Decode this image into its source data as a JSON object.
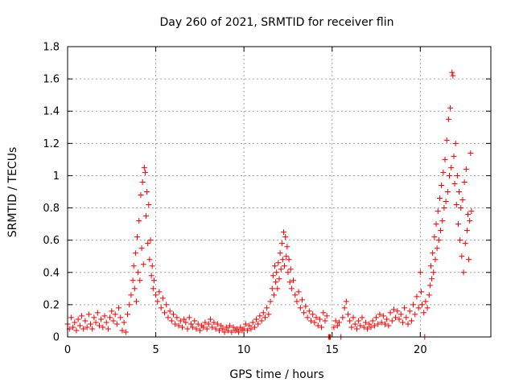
{
  "chart_data": {
    "type": "scatter",
    "title": "Day 260 of 2021, SRMTID for receiver flin",
    "xlabel": "GPS time / hours",
    "ylabel": "SRMTID / TECUs",
    "xlim": [
      0,
      24
    ],
    "ylim": [
      0,
      1.8
    ],
    "x_ticks": [
      0,
      5,
      10,
      15,
      20
    ],
    "y_ticks": [
      0,
      0.2,
      0.4,
      0.6,
      0.8,
      1,
      1.2,
      1.4,
      1.6,
      1.8
    ],
    "x_tick_labels": [
      "0",
      "5",
      "10",
      "15",
      "20"
    ],
    "y_tick_labels": [
      "0",
      "0.2",
      "0.4",
      "0.6",
      "0.8",
      "1",
      "1.2",
      "1.4",
      "1.6",
      "1.8"
    ],
    "grid": true,
    "marker": "+",
    "color": "#ee0000",
    "series": [
      {
        "name": "SRMTID",
        "points": [
          [
            0.0,
            0.08
          ],
          [
            0.1,
            0.05
          ],
          [
            0.2,
            0.12
          ],
          [
            0.3,
            0.06
          ],
          [
            0.4,
            0.09
          ],
          [
            0.5,
            0.04
          ],
          [
            0.6,
            0.11
          ],
          [
            0.7,
            0.07
          ],
          [
            0.8,
            0.13
          ],
          [
            0.9,
            0.05
          ],
          [
            1.0,
            0.1
          ],
          [
            1.1,
            0.06
          ],
          [
            1.2,
            0.14
          ],
          [
            1.3,
            0.08
          ],
          [
            1.4,
            0.05
          ],
          [
            1.5,
            0.12
          ],
          [
            1.6,
            0.09
          ],
          [
            1.7,
            0.15
          ],
          [
            1.8,
            0.07
          ],
          [
            1.9,
            0.11
          ],
          [
            2.0,
            0.06
          ],
          [
            2.1,
            0.13
          ],
          [
            2.2,
            0.09
          ],
          [
            2.3,
            0.05
          ],
          [
            2.4,
            0.12
          ],
          [
            2.5,
            0.16
          ],
          [
            2.6,
            0.1
          ],
          [
            2.7,
            0.14
          ],
          [
            2.8,
            0.08
          ],
          [
            2.9,
            0.18
          ],
          [
            3.0,
            0.12
          ],
          [
            3.1,
            0.04
          ],
          [
            3.2,
            0.09
          ],
          [
            3.3,
            0.03
          ],
          [
            3.4,
            0.14
          ],
          [
            3.5,
            0.2
          ],
          [
            3.6,
            0.26
          ],
          [
            3.7,
            0.35
          ],
          [
            3.75,
            0.44
          ],
          [
            3.8,
            0.3
          ],
          [
            3.85,
            0.52
          ],
          [
            3.9,
            0.22
          ],
          [
            3.95,
            0.62
          ],
          [
            4.0,
            0.4
          ],
          [
            4.05,
            0.72
          ],
          [
            4.1,
            0.35
          ],
          [
            4.15,
            0.88
          ],
          [
            4.2,
            0.55
          ],
          [
            4.25,
            0.96
          ],
          [
            4.3,
            0.45
          ],
          [
            4.35,
            1.05
          ],
          [
            4.4,
            1.02
          ],
          [
            4.45,
            0.75
          ],
          [
            4.5,
            0.9
          ],
          [
            4.55,
            0.58
          ],
          [
            4.6,
            0.82
          ],
          [
            4.65,
            0.48
          ],
          [
            4.7,
            0.6
          ],
          [
            4.75,
            0.38
          ],
          [
            4.8,
            0.44
          ],
          [
            4.85,
            0.3
          ],
          [
            4.9,
            0.35
          ],
          [
            5.0,
            0.26
          ],
          [
            5.1,
            0.22
          ],
          [
            5.2,
            0.28
          ],
          [
            5.3,
            0.18
          ],
          [
            5.4,
            0.24
          ],
          [
            5.5,
            0.15
          ],
          [
            5.6,
            0.2
          ],
          [
            5.7,
            0.12
          ],
          [
            5.8,
            0.16
          ],
          [
            5.9,
            0.1
          ],
          [
            6.0,
            0.14
          ],
          [
            6.1,
            0.08
          ],
          [
            6.2,
            0.12
          ],
          [
            6.3,
            0.07
          ],
          [
            6.4,
            0.1
          ],
          [
            6.5,
            0.06
          ],
          [
            6.6,
            0.11
          ],
          [
            6.7,
            0.09
          ],
          [
            6.8,
            0.05
          ],
          [
            6.9,
            0.12
          ],
          [
            7.0,
            0.08
          ],
          [
            7.1,
            0.06
          ],
          [
            7.2,
            0.1
          ],
          [
            7.3,
            0.05
          ],
          [
            7.4,
            0.08
          ],
          [
            7.5,
            0.04
          ],
          [
            7.6,
            0.07
          ],
          [
            7.7,
            0.06
          ],
          [
            7.8,
            0.09
          ],
          [
            7.9,
            0.05
          ],
          [
            8.0,
            0.08
          ],
          [
            8.1,
            0.11
          ],
          [
            8.2,
            0.06
          ],
          [
            8.3,
            0.09
          ],
          [
            8.4,
            0.05
          ],
          [
            8.5,
            0.08
          ],
          [
            8.6,
            0.04
          ],
          [
            8.7,
            0.07
          ],
          [
            8.8,
            0.05
          ],
          [
            8.9,
            0.03
          ],
          [
            9.0,
            0.06
          ],
          [
            9.1,
            0.04
          ],
          [
            9.2,
            0.07
          ],
          [
            9.3,
            0.03
          ],
          [
            9.4,
            0.06
          ],
          [
            9.5,
            0.04
          ],
          [
            9.6,
            0.05
          ],
          [
            9.7,
            0.03
          ],
          [
            9.8,
            0.06
          ],
          [
            9.9,
            0.04
          ],
          [
            10.0,
            0.05
          ],
          [
            10.1,
            0.08
          ],
          [
            10.2,
            0.04
          ],
          [
            10.3,
            0.07
          ],
          [
            10.4,
            0.05
          ],
          [
            10.5,
            0.09
          ],
          [
            10.6,
            0.06
          ],
          [
            10.7,
            0.11
          ],
          [
            10.8,
            0.08
          ],
          [
            10.9,
            0.13
          ],
          [
            11.0,
            0.1
          ],
          [
            11.1,
            0.15
          ],
          [
            11.2,
            0.12
          ],
          [
            11.3,
            0.18
          ],
          [
            11.4,
            0.14
          ],
          [
            11.5,
            0.22
          ],
          [
            11.6,
            0.3
          ],
          [
            11.65,
            0.38
          ],
          [
            11.7,
            0.26
          ],
          [
            11.75,
            0.44
          ],
          [
            11.8,
            0.34
          ],
          [
            11.85,
            0.4
          ],
          [
            11.9,
            0.3
          ],
          [
            11.95,
            0.46
          ],
          [
            12.0,
            0.36
          ],
          [
            12.05,
            0.52
          ],
          [
            12.1,
            0.42
          ],
          [
            12.15,
            0.58
          ],
          [
            12.2,
            0.48
          ],
          [
            12.25,
            0.65
          ],
          [
            12.3,
            0.44
          ],
          [
            12.35,
            0.62
          ],
          [
            12.4,
            0.5
          ],
          [
            12.45,
            0.56
          ],
          [
            12.5,
            0.4
          ],
          [
            12.55,
            0.48
          ],
          [
            12.6,
            0.34
          ],
          [
            12.65,
            0.42
          ],
          [
            12.7,
            0.3
          ],
          [
            12.8,
            0.35
          ],
          [
            12.9,
            0.26
          ],
          [
            13.0,
            0.22
          ],
          [
            13.1,
            0.28
          ],
          [
            13.2,
            0.18
          ],
          [
            13.3,
            0.23
          ],
          [
            13.4,
            0.15
          ],
          [
            13.5,
            0.19
          ],
          [
            13.6,
            0.12
          ],
          [
            13.7,
            0.16
          ],
          [
            13.8,
            0.1
          ],
          [
            13.9,
            0.14
          ],
          [
            14.0,
            0.09
          ],
          [
            14.1,
            0.12
          ],
          [
            14.2,
            0.07
          ],
          [
            14.3,
            0.11
          ],
          [
            14.4,
            0.06
          ],
          [
            14.5,
            0.15
          ],
          [
            14.6,
            0.1
          ],
          [
            14.7,
            0.13
          ],
          [
            14.8,
            0.0
          ],
          [
            14.85,
            0.0
          ],
          [
            14.9,
            0.0
          ],
          [
            15.1,
            0.06
          ],
          [
            15.2,
            0.1
          ],
          [
            15.3,
            0.07
          ],
          [
            15.4,
            0.09
          ],
          [
            15.5,
            0.0
          ],
          [
            15.6,
            0.12
          ],
          [
            15.7,
            0.18
          ],
          [
            15.8,
            0.22
          ],
          [
            15.9,
            0.14
          ],
          [
            16.0,
            0.1
          ],
          [
            16.1,
            0.06
          ],
          [
            16.2,
            0.12
          ],
          [
            16.3,
            0.08
          ],
          [
            16.4,
            0.05
          ],
          [
            16.5,
            0.1
          ],
          [
            16.6,
            0.07
          ],
          [
            16.7,
            0.12
          ],
          [
            16.8,
            0.06
          ],
          [
            16.9,
            0.09
          ],
          [
            17.0,
            0.05
          ],
          [
            17.1,
            0.08
          ],
          [
            17.2,
            0.06
          ],
          [
            17.3,
            0.1
          ],
          [
            17.4,
            0.07
          ],
          [
            17.5,
            0.12
          ],
          [
            17.6,
            0.08
          ],
          [
            17.7,
            0.14
          ],
          [
            17.8,
            0.09
          ],
          [
            17.9,
            0.13
          ],
          [
            18.0,
            0.08
          ],
          [
            18.1,
            0.11
          ],
          [
            18.2,
            0.07
          ],
          [
            18.3,
            0.15
          ],
          [
            18.4,
            0.1
          ],
          [
            18.5,
            0.17
          ],
          [
            18.6,
            0.12
          ],
          [
            18.7,
            0.16
          ],
          [
            18.8,
            0.11
          ],
          [
            18.9,
            0.14
          ],
          [
            19.0,
            0.09
          ],
          [
            19.1,
            0.18
          ],
          [
            19.2,
            0.12
          ],
          [
            19.3,
            0.08
          ],
          [
            19.4,
            0.16
          ],
          [
            19.5,
            0.1
          ],
          [
            19.6,
            0.2
          ],
          [
            19.7,
            0.14
          ],
          [
            19.8,
            0.25
          ],
          [
            19.9,
            0.18
          ],
          [
            20.0,
            0.4
          ],
          [
            20.05,
            0.28
          ],
          [
            20.1,
            0.2
          ],
          [
            20.2,
            0.15
          ],
          [
            20.25,
            0.0
          ],
          [
            20.3,
            0.22
          ],
          [
            20.4,
            0.18
          ],
          [
            20.5,
            0.26
          ],
          [
            20.55,
            0.32
          ],
          [
            20.6,
            0.44
          ],
          [
            20.65,
            0.36
          ],
          [
            20.7,
            0.52
          ],
          [
            20.75,
            0.4
          ],
          [
            20.8,
            0.62
          ],
          [
            20.85,
            0.48
          ],
          [
            20.9,
            0.7
          ],
          [
            20.95,
            0.55
          ],
          [
            21.0,
            0.78
          ],
          [
            21.05,
            0.6
          ],
          [
            21.1,
            0.86
          ],
          [
            21.15,
            0.66
          ],
          [
            21.2,
            0.94
          ],
          [
            21.25,
            0.72
          ],
          [
            21.3,
            1.02
          ],
          [
            21.35,
            0.8
          ],
          [
            21.4,
            1.1
          ],
          [
            21.45,
            0.84
          ],
          [
            21.5,
            1.22
          ],
          [
            21.55,
            0.9
          ],
          [
            21.6,
            1.35
          ],
          [
            21.65,
            1.0
          ],
          [
            21.7,
            1.42
          ],
          [
            21.75,
            1.05
          ],
          [
            21.8,
            1.64
          ],
          [
            21.85,
            1.62
          ],
          [
            21.9,
            1.12
          ],
          [
            21.95,
            0.95
          ],
          [
            22.0,
            1.2
          ],
          [
            22.05,
            0.82
          ],
          [
            22.1,
            1.0
          ],
          [
            22.15,
            0.7
          ],
          [
            22.2,
            0.9
          ],
          [
            22.25,
            0.6
          ],
          [
            22.3,
            0.8
          ],
          [
            22.35,
            0.5
          ],
          [
            22.4,
            0.85
          ],
          [
            22.45,
            0.4
          ],
          [
            22.5,
            0.96
          ],
          [
            22.55,
            0.58
          ],
          [
            22.6,
            1.04
          ],
          [
            22.65,
            0.66
          ],
          [
            22.7,
            0.76
          ],
          [
            22.75,
            0.48
          ],
          [
            22.8,
            0.72
          ],
          [
            22.85,
            1.14
          ],
          [
            22.9,
            0.78
          ]
        ]
      }
    ]
  }
}
